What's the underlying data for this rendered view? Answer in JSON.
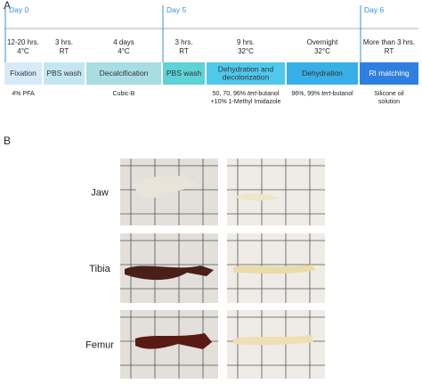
{
  "panels": {
    "a": "A",
    "b": "B"
  },
  "days": [
    "Day 0",
    "Day 5",
    "Day 6"
  ],
  "steps": [
    {
      "time": "12-20 hrs.",
      "temp": "4°C",
      "label": [
        "Fixation"
      ],
      "color": "#d8eaf8",
      "text_color": "#333333",
      "reagent": [
        [
          {
            "text": "4% PFA"
          }
        ]
      ]
    },
    {
      "time": "3 hrs.",
      "temp": "RT",
      "label": [
        "PBS wash"
      ],
      "color": "#c3e7f0",
      "text_color": "#333333",
      "reagent": []
    },
    {
      "time": "4 days",
      "temp": "4°C",
      "label": [
        "Decalcification"
      ],
      "color": "#a9dde4",
      "text_color": "#333333",
      "reagent": [
        [
          {
            "text": "Cubic-B"
          }
        ]
      ]
    },
    {
      "time": "3 hrs.",
      "temp": "RT",
      "label": [
        "PBS wash"
      ],
      "color": "#5ed2d6",
      "text_color": "#333333",
      "reagent": []
    },
    {
      "time": "9 hrs.",
      "temp": "32°C",
      "label": [
        "Dehydration and",
        "decolorization"
      ],
      "color": "#4fc8ec",
      "text_color": "#333333",
      "reagent": [
        [
          {
            "text": "50, 70, 96% "
          },
          {
            "text": "tert",
            "italic": true
          },
          {
            "text": "-butanol"
          }
        ],
        [
          {
            "text": "+10% 1-Methyl Imidazole"
          }
        ]
      ]
    },
    {
      "time": "Overnight",
      "temp": "32°C",
      "label": [
        "Dehydration"
      ],
      "color": "#38afe6",
      "text_color": "#333333",
      "reagent": [
        [
          {
            "text": "96%, 99% "
          },
          {
            "text": "tert",
            "italic": true
          },
          {
            "text": "-butanol"
          }
        ]
      ]
    },
    {
      "time": "More than 3 hrs.",
      "temp": "RT",
      "label": [
        "RI matching"
      ],
      "color": "#2f7fe0",
      "text_color": "#ffffff",
      "reagent": [
        [
          {
            "text": "Silicone oil"
          }
        ],
        [
          {
            "text": "solution"
          }
        ]
      ]
    }
  ],
  "rows": [
    "Jaw",
    "Tibia",
    "Femur"
  ]
}
